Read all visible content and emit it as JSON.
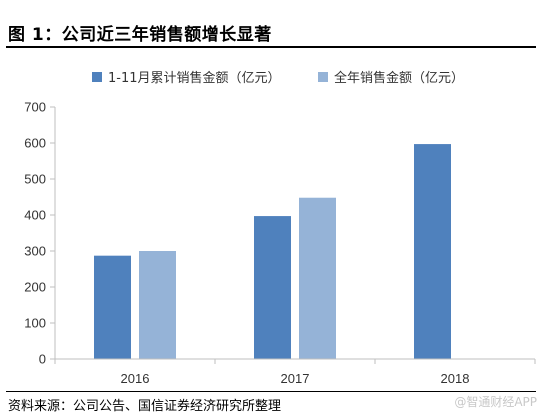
{
  "figure": {
    "title": "图 1：公司近三年销售额增长显著",
    "source": "资料来源：公司公告、国信证券经济研究所整理",
    "watermark": "@智通财经APP"
  },
  "colors": {
    "series1": "#4f81bd",
    "series2": "#95b3d7",
    "axis": "#bfbfbf"
  },
  "chart_data": {
    "type": "bar",
    "categories": [
      "2016",
      "2017",
      "2018"
    ],
    "series": [
      {
        "name": "1-11月累计销售金额（亿元）",
        "values": [
          287,
          397,
          597
        ]
      },
      {
        "name": "全年销售金额（亿元）",
        "values": [
          300,
          448,
          null
        ]
      }
    ],
    "ylim": [
      0,
      700
    ],
    "yticks": [
      0,
      100,
      200,
      300,
      400,
      500,
      600,
      700
    ],
    "grid": false,
    "legend_position": "top"
  }
}
